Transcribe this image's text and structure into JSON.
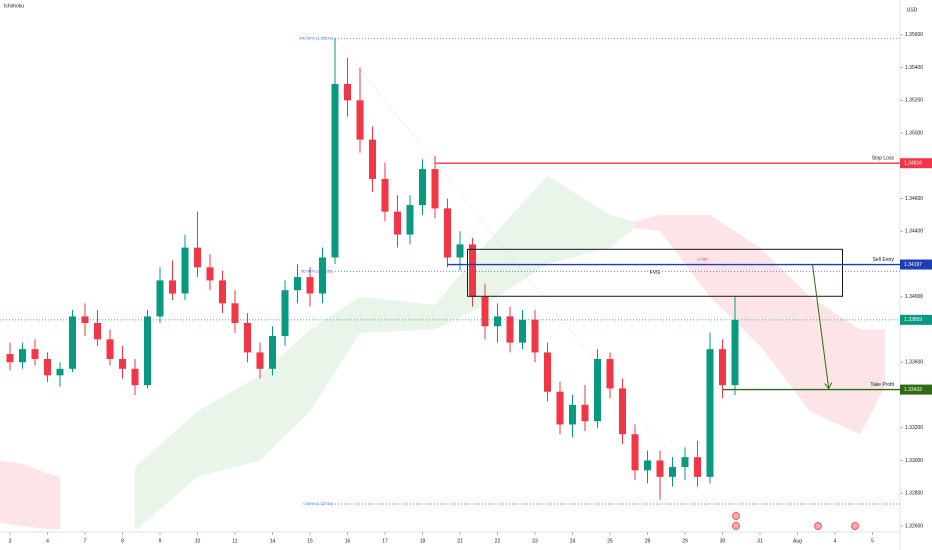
{
  "chart_data": {
    "type": "candlestick",
    "title": "Ichimoku",
    "currency": "USD",
    "up_color": "#089981",
    "down_color": "#f23645",
    "open": [
      1.3365,
      1.336,
      1.3368,
      1.3362,
      1.3352,
      1.3356,
      1.3388,
      1.3384,
      1.3374,
      1.3362,
      1.3356,
      1.3346,
      1.3388,
      1.341,
      1.3402,
      1.343,
      1.3418,
      1.341,
      1.3396,
      1.3384,
      1.3366,
      1.3356,
      1.3376,
      1.3404,
      1.3412,
      1.3402,
      1.3424,
      1.353,
      1.352,
      1.3496,
      1.3472,
      1.3452,
      1.3438,
      1.3456,
      1.3478,
      1.3454,
      1.3424,
      1.3432,
      1.34,
      1.3382,
      1.3388,
      1.3372,
      1.3386,
      1.3366,
      1.3342,
      1.3322,
      1.3334,
      1.3324,
      1.3362,
      1.3344,
      1.3316,
      1.3294,
      1.33,
      1.329,
      1.3296,
      1.3302,
      1.329,
      1.3368,
      1.3346
    ],
    "high": [
      1.3372,
      1.3372,
      1.3374,
      1.3366,
      1.336,
      1.3392,
      1.3396,
      1.3392,
      1.338,
      1.337,
      1.3362,
      1.3392,
      1.3418,
      1.3422,
      1.3438,
      1.3452,
      1.3426,
      1.3416,
      1.3404,
      1.339,
      1.3372,
      1.3382,
      1.341,
      1.342,
      1.3418,
      1.343,
      1.3558,
      1.3546,
      1.354,
      1.3504,
      1.3482,
      1.3462,
      1.3462,
      1.3484,
      1.3486,
      1.346,
      1.344,
      1.3436,
      1.3408,
      1.3396,
      1.3394,
      1.3392,
      1.3392,
      1.3372,
      1.3348,
      1.334,
      1.3346,
      1.3368,
      1.3366,
      1.335,
      1.3322,
      1.3306,
      1.3306,
      1.3302,
      1.3308,
      1.3312,
      1.3378,
      1.3374,
      1.34
    ],
    "low": [
      1.3355,
      1.3356,
      1.3358,
      1.3348,
      1.3345,
      1.3354,
      1.3376,
      1.337,
      1.3358,
      1.335,
      1.334,
      1.3344,
      1.3384,
      1.3398,
      1.3398,
      1.3412,
      1.3404,
      1.339,
      1.3378,
      1.336,
      1.335,
      1.3352,
      1.337,
      1.3396,
      1.3394,
      1.3396,
      1.342,
      1.351,
      1.3488,
      1.3464,
      1.3446,
      1.343,
      1.3432,
      1.345,
      1.3448,
      1.3418,
      1.3416,
      1.3394,
      1.3374,
      1.3372,
      1.3366,
      1.3368,
      1.336,
      1.3336,
      1.3316,
      1.3314,
      1.3318,
      1.332,
      1.3338,
      1.331,
      1.3288,
      1.3286,
      1.3276,
      1.3284,
      1.3288,
      1.3284,
      1.3286,
      1.3338,
      1.334
    ],
    "close": [
      1.336,
      1.3368,
      1.3362,
      1.3352,
      1.3356,
      1.3388,
      1.3384,
      1.3374,
      1.3362,
      1.3356,
      1.3346,
      1.3388,
      1.341,
      1.3402,
      1.343,
      1.3418,
      1.341,
      1.3396,
      1.3384,
      1.3366,
      1.3356,
      1.3376,
      1.3404,
      1.3412,
      1.3402,
      1.3424,
      1.353,
      1.352,
      1.3496,
      1.3472,
      1.3452,
      1.3438,
      1.3456,
      1.3478,
      1.3454,
      1.3424,
      1.3432,
      1.34,
      1.3382,
      1.3388,
      1.3372,
      1.3386,
      1.3366,
      1.3342,
      1.3322,
      1.3334,
      1.3324,
      1.3362,
      1.3344,
      1.3316,
      1.3294,
      1.33,
      1.329,
      1.3296,
      1.3302,
      1.329,
      1.3368,
      1.3346,
      1.33859
    ],
    "cloud": [
      {
        "color": "#4caf50",
        "x": [
          10,
          15,
          20,
          24,
          28,
          34,
          38,
          43,
          48,
          50
        ],
        "upper": [
          1.3296,
          1.333,
          1.3352,
          1.338,
          1.34,
          1.3395,
          1.3432,
          1.3474,
          1.345,
          1.3446
        ],
        "lower": [
          1.3257,
          1.329,
          1.33,
          1.333,
          1.3378,
          1.338,
          1.3395,
          1.342,
          1.343,
          1.3442
        ]
      },
      {
        "color": "#f23645",
        "x": [
          50,
          52,
          56,
          60,
          64,
          68,
          70
        ],
        "upper": [
          1.3446,
          1.345,
          1.345,
          1.343,
          1.34,
          1.338,
          1.338
        ],
        "lower": [
          1.3442,
          1.344,
          1.34,
          1.337,
          1.333,
          1.3316,
          1.3345
        ]
      },
      {
        "color": "#f23645",
        "x": [
          -0.8,
          1,
          3,
          4
        ],
        "upper": [
          1.33,
          1.3298,
          1.3292,
          1.329
        ],
        "lower": [
          1.3262,
          1.326,
          1.3258,
          1.3258
        ]
      }
    ],
    "levels": [
      {
        "name": "Stop Loss",
        "value": 1.34816,
        "color": "#f23645"
      },
      {
        "name": "Sell Entry",
        "value": 1.34197,
        "color": "#1e3fb4"
      },
      {
        "name": "Take Profit",
        "value": 1.33433,
        "color": "#2e6b13"
      }
    ],
    "current_price": 1.33859,
    "current_color": "#089981",
    "fvg": {
      "label": "FVG",
      "top": 1.3429,
      "bottom": 1.34003
    },
    "fib": [
      {
        "label": "100.00% (1.35579)",
        "value": 1.35579
      },
      {
        "label": "50.00% (1.34156)",
        "value": 1.34156
      },
      {
        "label": "0.00% (1.32734)",
        "value": 1.32734
      }
    ],
    "fib_note": "0.786",
    "xlim": [
      -0.8,
      71.2
    ],
    "ylim": [
      1.32563,
      1.35813
    ],
    "xticks": [
      {
        "value": 0,
        "label": "3"
      },
      {
        "value": 3,
        "label": "4"
      },
      {
        "value": 6,
        "label": "7"
      },
      {
        "value": 9,
        "label": "8"
      },
      {
        "value": 12,
        "label": "9"
      },
      {
        "value": 15,
        "label": "10"
      },
      {
        "value": 18,
        "label": "11"
      },
      {
        "value": 21,
        "label": "14"
      },
      {
        "value": 24,
        "label": "15"
      },
      {
        "value": 27,
        "label": "16"
      },
      {
        "value": 30,
        "label": "17"
      },
      {
        "value": 33,
        "label": "18"
      },
      {
        "value": 36,
        "label": "21"
      },
      {
        "value": 39,
        "label": "22"
      },
      {
        "value": 42,
        "label": "23"
      },
      {
        "value": 45,
        "label": "24"
      },
      {
        "value": 48,
        "label": "25"
      },
      {
        "value": 51,
        "label": "28"
      },
      {
        "value": 54,
        "label": "29"
      },
      {
        "value": 57,
        "label": "30"
      },
      {
        "value": 60,
        "label": "31"
      },
      {
        "value": 63,
        "label": "Aug"
      },
      {
        "value": 66,
        "label": "4"
      },
      {
        "value": 69,
        "label": "5"
      }
    ],
    "yticks": [
      {
        "value": 1.356,
        "label": "1.35600"
      },
      {
        "value": 1.354,
        "label": "1.35400"
      },
      {
        "value": 1.352,
        "label": "1.35200"
      },
      {
        "value": 1.35,
        "label": "1.35000"
      },
      {
        "value": 1.346,
        "label": "1.34600"
      },
      {
        "value": 1.344,
        "label": "1.34400"
      },
      {
        "value": 1.34,
        "label": "1.34000"
      },
      {
        "value": 1.336,
        "label": "1.33600"
      },
      {
        "value": 1.332,
        "label": "1.33200"
      },
      {
        "value": 1.33,
        "label": "1.33000"
      },
      {
        "value": 1.328,
        "label": "1.32800"
      },
      {
        "value": 1.326,
        "label": "1.32600"
      }
    ],
    "grid": false
  }
}
